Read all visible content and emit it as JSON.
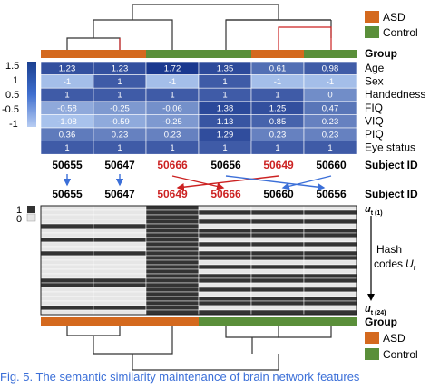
{
  "legend_top": {
    "asd_label": "ASD",
    "control_label": "Control",
    "group_label": "Group"
  },
  "legend_bottom": {
    "asd_label": "ASD",
    "control_label": "Control",
    "group_label": "Group"
  },
  "colors": {
    "asd": "#d4691e",
    "control": "#5a8f3a",
    "dendro_highlight": "#cc2222",
    "hash_zero": "#e6e6e6",
    "hash_one": "#333333",
    "arrow_blue": "#3b6fd8",
    "arrow_red": "#cc2222"
  },
  "colorbar": {
    "ticks": [
      "1.5",
      "1",
      "0.5",
      "-0.5",
      "-1"
    ]
  },
  "heatmap": {
    "row_labels": [
      "Age",
      "Sex",
      "Handedness",
      "FIQ",
      "VIQ",
      "PIQ",
      "Eye status"
    ],
    "rows": [
      [
        "1.23",
        "1.23",
        "1.72",
        "1.35",
        "0.61",
        "0.98"
      ],
      [
        "-1",
        "1",
        "-1",
        "1",
        "-1",
        "-1"
      ],
      [
        "1",
        "1",
        "1",
        "1",
        "1",
        "0"
      ],
      [
        "-0.58",
        "-0.25",
        "-0.06",
        "1.38",
        "1.25",
        "0.47"
      ],
      [
        "-1.08",
        "-0.59",
        "-0.25",
        "1.13",
        "0.85",
        "0.23"
      ],
      [
        "0.36",
        "0.23",
        "0.23",
        "1.29",
        "0.23",
        "0.23"
      ],
      [
        "1",
        "1",
        "1",
        "1",
        "1",
        "1"
      ]
    ]
  },
  "subjects_top": {
    "ids": [
      "50655",
      "50647",
      "50666",
      "50656",
      "50649",
      "50660"
    ],
    "highlight": [
      false,
      false,
      true,
      false,
      true,
      false
    ],
    "label": "Subject ID"
  },
  "subjects_bottom": {
    "ids": [
      "50655",
      "50647",
      "50649",
      "50666",
      "50660",
      "50656"
    ],
    "highlight": [
      false,
      false,
      true,
      true,
      false,
      false
    ],
    "label": "Subject ID"
  },
  "hash": {
    "legend_one": "1",
    "legend_zero": "0",
    "label_line1": "Hash",
    "label_line2": "codes",
    "label_var": "U",
    "label_sub": "t",
    "u_top": "u",
    "u_top_sub": "t (1)",
    "u_bottom": "u",
    "u_bottom_sub": "t (24)"
  },
  "caption": "Fig. 5.   The semantic similarity maintenance of brain network features"
}
